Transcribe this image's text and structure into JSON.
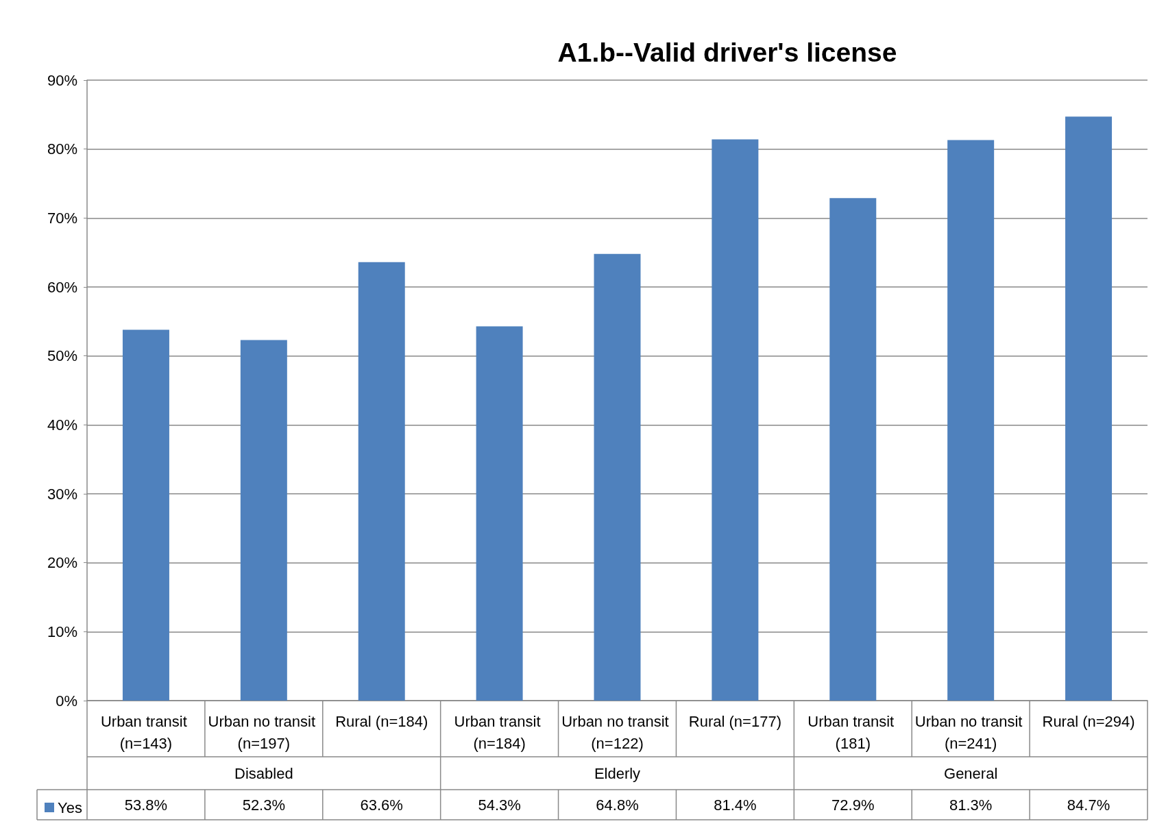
{
  "chart_data": {
    "type": "bar",
    "title": "A1.b--Valid driver's license",
    "categories": [
      "Urban transit (n=143)",
      "Urban no transit (n=197)",
      "Rural (n=184)",
      "Urban transit (n=184)",
      "Urban no transit (n=122)",
      "Rural (n=177)",
      "Urban transit (181)",
      "Urban no transit (n=241)",
      "Rural (n=294)"
    ],
    "series": [
      {
        "name": "Yes",
        "color": "#4f81bd",
        "values": [
          53.8,
          52.3,
          63.6,
          54.3,
          64.8,
          81.4,
          72.9,
          81.3,
          84.7
        ],
        "value_labels": [
          "53.8%",
          "52.3%",
          "63.6%",
          "54.3%",
          "64.8%",
          "81.4%",
          "72.9%",
          "81.3%",
          "84.7%"
        ]
      }
    ],
    "annotations": [
      "Disabled",
      "Elderly",
      "General"
    ],
    "ylim": [
      0,
      90
    ],
    "yticks": [
      {
        "value": 0,
        "label": "0%"
      },
      {
        "value": 10,
        "label": "10%"
      },
      {
        "value": 20,
        "label": "20%"
      },
      {
        "value": 30,
        "label": "30%"
      },
      {
        "value": 40,
        "label": "40%"
      },
      {
        "value": 50,
        "label": "50%"
      },
      {
        "value": 60,
        "label": "60%"
      },
      {
        "value": 70,
        "label": "70%"
      },
      {
        "value": 80,
        "label": "80%"
      },
      {
        "value": 90,
        "label": "90%"
      }
    ],
    "grid": "y",
    "legend": "bottom left"
  }
}
